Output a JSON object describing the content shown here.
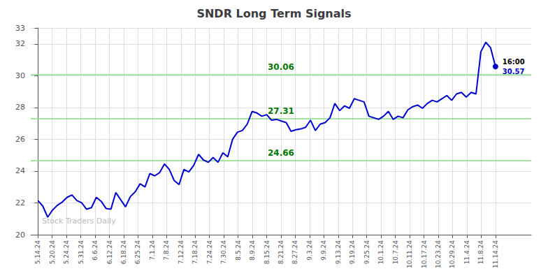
{
  "chart_data": {
    "type": "line",
    "title": "SNDR Long Term Signals",
    "x": [
      0,
      0.3404,
      0.6809,
      1.0213,
      1.3617,
      1.7021,
      2.0426,
      2.383,
      2.7234,
      3.0638,
      3.4043,
      3.7447,
      4.0851,
      4.4255,
      4.766,
      5.1064,
      5.4468,
      5.7872,
      6.1277,
      6.4681,
      6.8085,
      7.1489,
      7.4894,
      7.8298,
      8.1702,
      8.5106,
      8.8511,
      9.1915,
      9.5319,
      9.8723,
      10.2128,
      10.5532,
      10.8936,
      11.234,
      11.5745,
      11.9149,
      12.2553,
      12.5957,
      12.9362,
      13.2766,
      13.617,
      13.9574,
      14.2979,
      14.6383,
      14.9787,
      15.3191,
      15.6596,
      16,
      16.3404,
      16.6809,
      17.0213,
      17.3617,
      17.7021,
      18.0426,
      18.383,
      18.7234,
      19.0638,
      19.4043,
      19.7447,
      20.0851,
      20.4255,
      20.766,
      21.1064,
      21.4468,
      21.7872,
      22.1277,
      22.4681,
      22.8085,
      23.1489,
      23.4894,
      23.8298,
      24.1702,
      24.5106,
      24.8511,
      25.1915,
      25.5319,
      25.8723,
      26.2128,
      26.5532,
      26.8936,
      27.234,
      27.5745,
      27.9149,
      28.2553,
      28.5957,
      28.9362,
      29.2766,
      29.617,
      29.9574,
      30.2979,
      30.6383,
      30.9787,
      31.3191,
      31.6596,
      32
    ],
    "values": [
      22.15,
      21.8,
      21.1,
      21.55,
      21.85,
      22.05,
      22.35,
      22.5,
      22.15,
      22.0,
      21.6,
      21.7,
      22.35,
      22.1,
      21.65,
      21.6,
      22.65,
      22.2,
      21.75,
      22.4,
      22.7,
      23.2,
      23.0,
      23.85,
      23.7,
      23.9,
      24.45,
      24.1,
      23.4,
      23.15,
      24.1,
      23.95,
      24.35,
      25.05,
      24.7,
      24.55,
      24.85,
      24.55,
      25.15,
      24.9,
      26.0,
      26.45,
      26.55,
      26.95,
      27.75,
      27.65,
      27.45,
      27.55,
      27.2,
      27.25,
      27.15,
      27.05,
      26.5,
      26.6,
      26.65,
      26.75,
      27.2,
      26.55,
      26.95,
      27.05,
      27.35,
      28.25,
      27.8,
      28.1,
      27.95,
      28.55,
      28.45,
      28.35,
      27.45,
      27.35,
      27.25,
      27.45,
      27.75,
      27.25,
      27.45,
      27.35,
      27.85,
      28.05,
      28.15,
      27.95,
      28.25,
      28.45,
      28.35,
      28.55,
      28.75,
      28.45,
      28.85,
      28.95,
      28.65,
      28.95,
      28.85,
      31.5,
      32.1,
      31.75,
      30.57
    ],
    "color": "#0000CC",
    "xlim": [
      -0.5,
      34.5
    ],
    "xticks": [
      {
        "value": 0,
        "label": "5.14.24"
      },
      {
        "value": 1,
        "label": "5.20.24"
      },
      {
        "value": 2,
        "label": "5.24.24"
      },
      {
        "value": 3,
        "label": "5.31.24"
      },
      {
        "value": 4,
        "label": "6.6.24"
      },
      {
        "value": 5,
        "label": "6.12.24"
      },
      {
        "value": 6,
        "label": "6.18.24"
      },
      {
        "value": 7,
        "label": "6.25.24"
      },
      {
        "value": 8,
        "label": "7.1.24"
      },
      {
        "value": 9,
        "label": "7.8.24"
      },
      {
        "value": 10,
        "label": "7.12.24"
      },
      {
        "value": 11,
        "label": "7.18.24"
      },
      {
        "value": 12,
        "label": "7.24.24"
      },
      {
        "value": 13,
        "label": "7.30.24"
      },
      {
        "value": 14,
        "label": "8.5.24"
      },
      {
        "value": 15,
        "label": "8.9.24"
      },
      {
        "value": 16,
        "label": "8.15.24"
      },
      {
        "value": 17,
        "label": "8.21.24"
      },
      {
        "value": 18,
        "label": "8.27.24"
      },
      {
        "value": 19,
        "label": "9.3.24"
      },
      {
        "value": 20,
        "label": "9.9.24"
      },
      {
        "value": 21,
        "label": "9.13.24"
      },
      {
        "value": 22,
        "label": "9.19.24"
      },
      {
        "value": 23,
        "label": "9.25.24"
      },
      {
        "value": 24,
        "label": "10.1.24"
      },
      {
        "value": 25,
        "label": "10.7.24"
      },
      {
        "value": 26,
        "label": "10.11.24"
      },
      {
        "value": 27,
        "label": "10.17.24"
      },
      {
        "value": 28,
        "label": "10.23.24"
      },
      {
        "value": 29,
        "label": "10.29.24"
      },
      {
        "value": 30,
        "label": "11.4.24"
      },
      {
        "value": 31,
        "label": "11.8.24"
      },
      {
        "value": 32,
        "label": "11.14.24"
      }
    ],
    "ylim": [
      20,
      33
    ],
    "yticks": [
      20,
      22,
      24,
      26,
      28,
      30,
      32
    ],
    "grid": true,
    "hlines": [
      30.06,
      27.31,
      24.66
    ],
    "hline_labels": [
      "30.06",
      "27.31",
      "24.66"
    ],
    "hline_color": "#88DD88",
    "hline_label_color": "#007700",
    "last_point": {
      "x": 32,
      "y": 30.57,
      "color": "#0000CC",
      "time_label": "16:00",
      "label": "30.57"
    },
    "watermark": "Stock Traders Daily",
    "watermark_color": "#bbbbbb"
  }
}
